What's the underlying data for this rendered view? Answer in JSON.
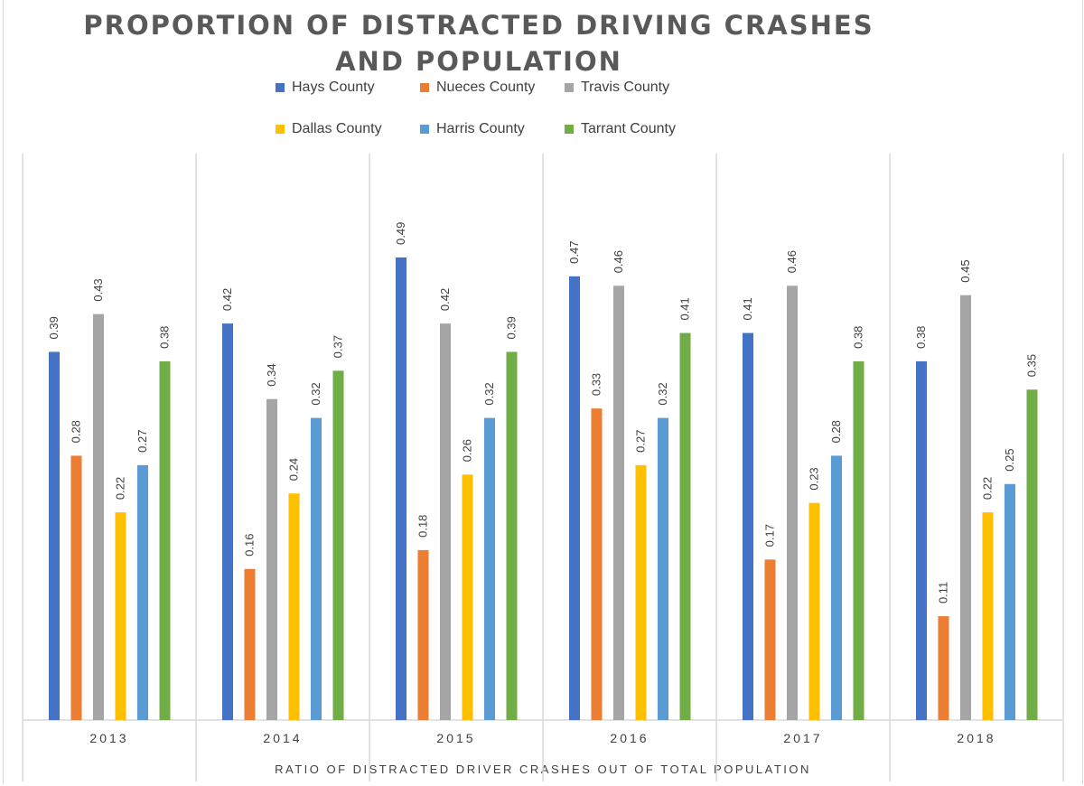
{
  "chart_data": {
    "type": "bar",
    "title": "PROPORTION OF DISTRACTED DRIVING CRASHES AND POPULATION",
    "xlabel": "RATIO OF DISTRACTED DRIVER CRASHES OUT OF TOTAL POPULATION",
    "ylabel": "",
    "categories": [
      "2013",
      "2014",
      "2015",
      "2016",
      "2017",
      "2018"
    ],
    "ylim": [
      0,
      0.6
    ],
    "grid": "vertical category separators",
    "legend_position": "top",
    "series": [
      {
        "name": "Hays County",
        "color": "#4472C4",
        "values": [
          0.39,
          0.42,
          0.49,
          0.47,
          0.41,
          0.38
        ]
      },
      {
        "name": "Nueces County",
        "color": "#ED7D31",
        "values": [
          0.28,
          0.16,
          0.18,
          0.33,
          0.17,
          0.11
        ]
      },
      {
        "name": "Travis County",
        "color": "#A5A5A5",
        "values": [
          0.43,
          0.34,
          0.42,
          0.46,
          0.46,
          0.45
        ]
      },
      {
        "name": "Dallas County",
        "color": "#FFC000",
        "values": [
          0.22,
          0.24,
          0.26,
          0.27,
          0.23,
          0.22
        ]
      },
      {
        "name": "Harris County",
        "color": "#5B9BD5",
        "values": [
          0.27,
          0.32,
          0.32,
          0.32,
          0.28,
          0.25
        ]
      },
      {
        "name": "Tarrant County",
        "color": "#70AD47",
        "values": [
          0.38,
          0.37,
          0.39,
          0.41,
          0.38,
          0.35
        ]
      }
    ]
  }
}
